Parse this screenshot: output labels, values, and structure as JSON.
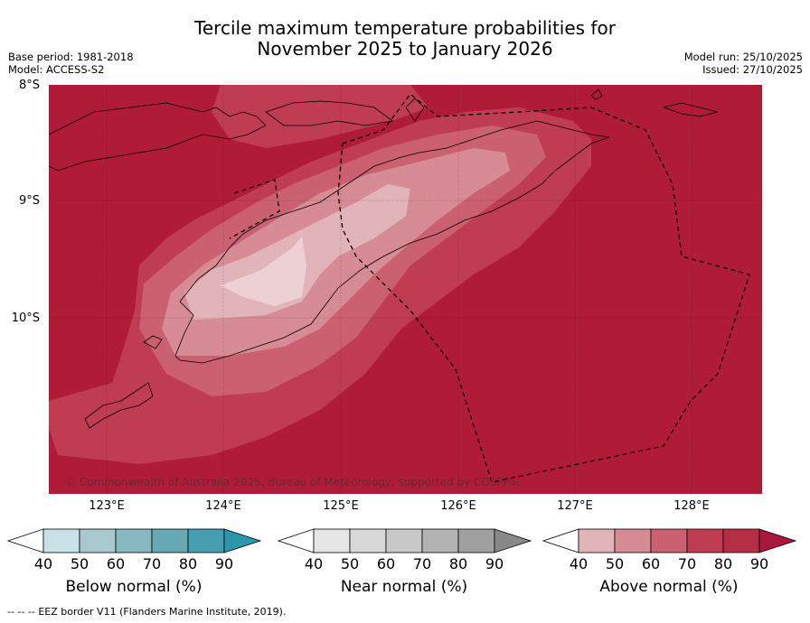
{
  "header": {
    "title_line1": "Tercile maximum temperature probabilities for",
    "title_line2": "November 2025 to January 2026",
    "base_period": "Base period: 1981-2018",
    "model": "Model: ACCESS-S2",
    "model_run": "Model run: 25/10/2025",
    "issued": "Issued: 27/10/2025"
  },
  "map": {
    "lat_labels": [
      "8°S",
      "9°S",
      "10°S"
    ],
    "lon_labels": [
      "123°E",
      "124°E",
      "125°E",
      "126°E",
      "127°E",
      "128°E"
    ],
    "copyright": "© Commonwealth of Australia 2025, Bureau of Meteorology, supported by COSPPac",
    "colors": {
      "above_90": "#b01c38",
      "above_80": "#bf3c52",
      "above_70": "#ca6070",
      "above_60": "#d68b95",
      "above_50": "#e1b4ba"
    }
  },
  "colorbars": [
    {
      "label": "Below normal (%)",
      "ticks": [
        "40",
        "50",
        "60",
        "70",
        "80",
        "90"
      ],
      "colors": [
        "#c9e2e8",
        "#a9c9cf",
        "#88b8c2",
        "#67a8b5",
        "#459fb0",
        "#2e96ab"
      ]
    },
    {
      "label": "Near normal (%)",
      "ticks": [
        "40",
        "50",
        "60",
        "70",
        "80",
        "90"
      ],
      "colors": [
        "#e6e6e6",
        "#d8d8d8",
        "#c8c8c8",
        "#b3b3b3",
        "#a0a0a0",
        "#888888"
      ]
    },
    {
      "label": "Above normal (%)",
      "ticks": [
        "40",
        "50",
        "60",
        "70",
        "80",
        "90"
      ],
      "colors": [
        "#e1b4ba",
        "#d68b95",
        "#ca6070",
        "#bf3c52",
        "#b52e45",
        "#a8183a"
      ]
    }
  ],
  "legend": {
    "dash": "-- -- --",
    "eez_text": "EEZ border V11 (Flanders Marine Institute, 2019)."
  }
}
